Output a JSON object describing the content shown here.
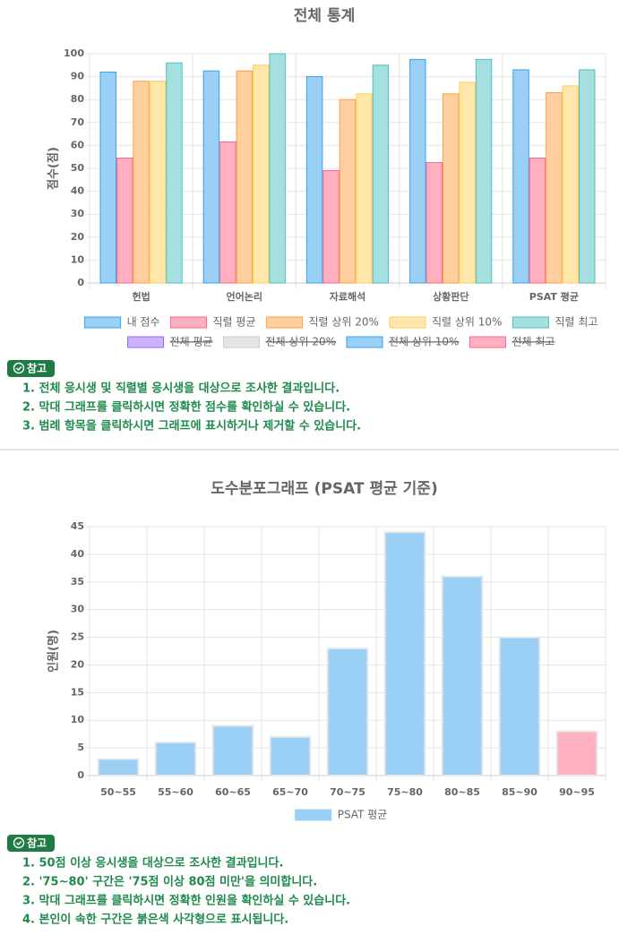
{
  "chart_data": [
    {
      "type": "bar",
      "title": "전체 통계",
      "y_label": "점수(점)",
      "categories": [
        "헌법",
        "언어논리",
        "자료해석",
        "상황판단",
        "PSAT 평균"
      ],
      "series": [
        {
          "name": "내 점수",
          "color": "#9ad0f5",
          "border": "#36a2eb",
          "values": [
            92,
            92.5,
            90,
            97.5,
            93
          ]
        },
        {
          "name": "직렬 평균",
          "color": "#ffb1c1",
          "border": "#ff6384",
          "values": [
            54.5,
            61.5,
            49,
            52.5,
            54.5
          ]
        },
        {
          "name": "직렬 상위 20%",
          "color": "#ffcf9f",
          "border": "#ff9f40",
          "values": [
            88,
            92.5,
            80,
            82.5,
            83
          ]
        },
        {
          "name": "직렬 상위 10%",
          "color": "#ffe6aa",
          "border": "#ffcd56",
          "values": [
            88,
            95,
            82.5,
            87.5,
            86
          ]
        },
        {
          "name": "직렬 최고",
          "color": "#a5dfdf",
          "border": "#4bc0c0",
          "values": [
            96,
            100,
            95,
            97.5,
            93
          ]
        }
      ],
      "hidden_series": [
        {
          "name": "전체 평균",
          "color": "#ccb2ff",
          "border": "#9966ff"
        },
        {
          "name": "전체 상위 20%",
          "color": "#e4e5e7",
          "border": "#c9cbcf"
        },
        {
          "name": "전체 상위 10%",
          "color": "#9ad0f5",
          "border": "#36a2eb"
        },
        {
          "name": "전체 최고",
          "color": "#ffb1c1",
          "border": "#ff6384"
        }
      ],
      "ylim": [
        0,
        100
      ],
      "yticks": [
        0,
        10,
        20,
        30,
        40,
        50,
        60,
        70,
        80,
        90,
        100
      ],
      "grid": true,
      "legend": "bottom"
    },
    {
      "type": "bar",
      "title": "도수분포그래프 (PSAT 평균 기준)",
      "y_label": "인원(명)",
      "categories": [
        "50~55",
        "55~60",
        "60~65",
        "65~70",
        "70~75",
        "75~80",
        "80~85",
        "85~90",
        "90~95"
      ],
      "values": [
        3,
        6,
        9,
        7,
        23,
        44,
        36,
        25,
        8
      ],
      "series_name": "PSAT 평균",
      "color": "#9ad0f5",
      "colors": [
        "#9ad0f5",
        "#9ad0f5",
        "#9ad0f5",
        "#9ad0f5",
        "#9ad0f5",
        "#9ad0f5",
        "#9ad0f5",
        "#9ad0f5",
        "#ffb1c1"
      ],
      "ylim": [
        0,
        45
      ],
      "yticks": [
        0,
        5,
        10,
        15,
        20,
        25,
        30,
        35,
        40,
        45
      ],
      "grid": true,
      "legend": "bottom"
    }
  ],
  "notes": [
    {
      "badge": "참고",
      "items": [
        "1. 전체 응시생 및 직렬별 응시생을 대상으로 조사한 결과입니다.",
        "2. 막대 그래프를 클릭하시면 정확한 점수를 확인하실 수 있습니다.",
        "3. 범례 항목을 클릭하시면 그래프에 표시하거나 제거할 수 있습니다."
      ]
    },
    {
      "badge": "참고",
      "items": [
        "1. 50점 이상 응시생을 대상으로 조사한 결과입니다.",
        "2. '75~80' 구간은 '75점 이상 80점 미만'을 의미합니다.",
        "3. 막대 그래프를 클릭하시면 정확한 인원을 확인하실 수 있습니다.",
        "4. 본인이 속한 구간은 붉은색 사각형으로 표시됩니다."
      ]
    }
  ]
}
